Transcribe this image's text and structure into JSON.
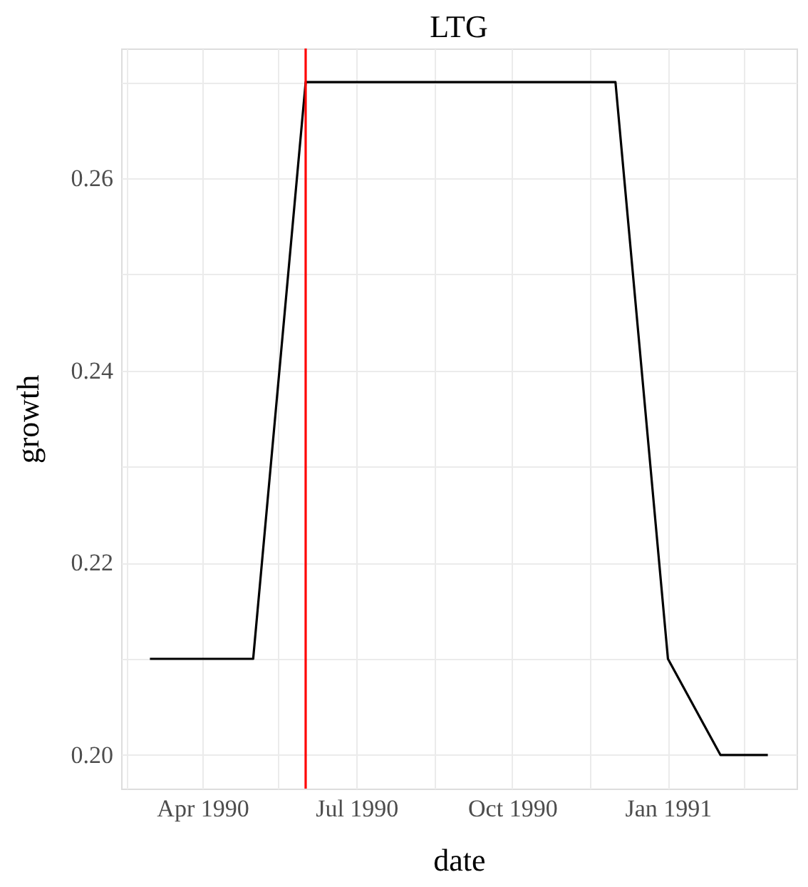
{
  "chart_data": {
    "type": "line",
    "title": "LTG",
    "xlabel": "date",
    "ylabel": "growth",
    "x": [
      "1990-03-01",
      "1990-04-01",
      "1990-05-01",
      "1990-06-01",
      "1990-07-01",
      "1990-08-01",
      "1990-09-01",
      "1990-10-01",
      "1990-11-01",
      "1990-12-01",
      "1991-01-01",
      "1991-02-01",
      "1991-03-01"
    ],
    "series": [
      {
        "color": "#000000",
        "values": [
          0.21,
          0.21,
          0.21,
          0.27,
          0.27,
          0.27,
          0.27,
          0.27,
          0.27,
          0.27,
          0.21,
          0.2,
          0.2
        ]
      }
    ],
    "xlim": [
      "1990-02-12",
      "1991-03-18"
    ],
    "xticks": [
      {
        "value": "1990-02-15",
        "label": null
      },
      {
        "value": "1990-04-01",
        "label": "Apr 1990"
      },
      {
        "value": "1990-05-16",
        "label": null
      },
      {
        "value": "1990-07-01",
        "label": "Jul 1990"
      },
      {
        "value": "1990-08-16",
        "label": null
      },
      {
        "value": "1990-10-01",
        "label": "Oct 1990"
      },
      {
        "value": "1990-11-16",
        "label": null
      },
      {
        "value": "1991-01-01",
        "label": "Jan 1991"
      },
      {
        "value": "1991-02-15",
        "label": null
      }
    ],
    "ylim": [
      0.1965,
      0.2735
    ],
    "yticks": [
      {
        "value": 0.2,
        "label": "0.20"
      },
      {
        "value": 0.21,
        "label": null
      },
      0.22,
      {
        "value": 0.23,
        "label": null
      },
      0.24,
      {
        "value": 0.25,
        "label": null
      },
      0.26,
      {
        "value": 0.27,
        "label": null
      }
    ],
    "ref_lines": [
      {
        "axis": "x",
        "value": "1990-06-01",
        "color": "#ff0000"
      }
    ],
    "grid": true,
    "line_style": "solid",
    "marker": "none"
  }
}
